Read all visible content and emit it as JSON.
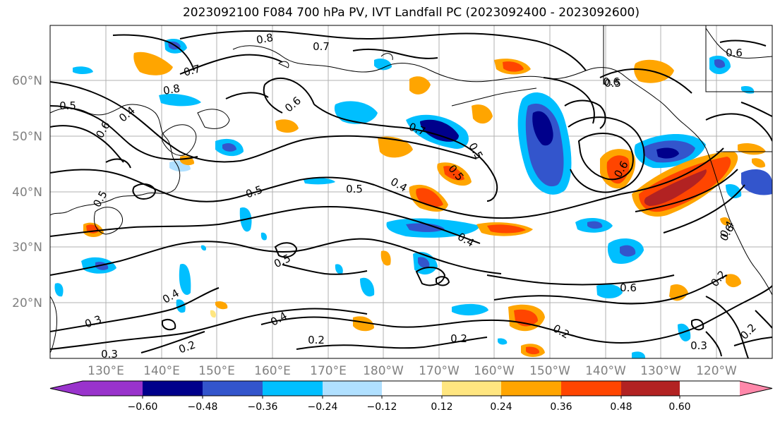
{
  "title": "2023092100 F084 700 hPa PV, IVT Landfall PC (2023092400 - 2023092600)",
  "map": {
    "lat_labels": [
      "60°N",
      "50°N",
      "40°N",
      "30°N",
      "20°N"
    ],
    "lon_labels": [
      "130°E",
      "140°E",
      "150°E",
      "160°E",
      "170°E",
      "180°W",
      "170°W",
      "160°W",
      "150°W",
      "140°W",
      "130°W",
      "120°W"
    ],
    "contour_labels": [
      "0.8",
      "0.7",
      "0.7",
      "0.8",
      "0.6",
      "0.5",
      "0.4",
      "0.6",
      "0.7",
      "0.5",
      "0.6",
      "0.5",
      "0.4",
      "0.5",
      "0.5",
      "0.5",
      "0.4",
      "0.6",
      "0.5",
      "0.4",
      "0.3",
      "0.4",
      "0.2",
      "0.3",
      "0.2",
      "0.2",
      "0.2",
      "0.6",
      "0.2",
      "0.3",
      "0.2",
      "0.6",
      "0.5",
      "0.6",
      "0.4"
    ],
    "contour_variable": "700 hPa PV",
    "shading_variable": "IVT Landfall PC"
  },
  "colorbar": {
    "ticks": [
      "−0.60",
      "−0.48",
      "−0.36",
      "−0.24",
      "−0.12",
      "0.12",
      "0.24",
      "0.36",
      "0.48",
      "0.60"
    ],
    "colors": [
      "#9933cc",
      "#00008b",
      "#3355cc",
      "#00bfff",
      "#b0e0ff",
      "#ffffff",
      "#ffe680",
      "#ffa500",
      "#ff4500",
      "#b22222",
      "#ff88aa"
    ]
  }
}
